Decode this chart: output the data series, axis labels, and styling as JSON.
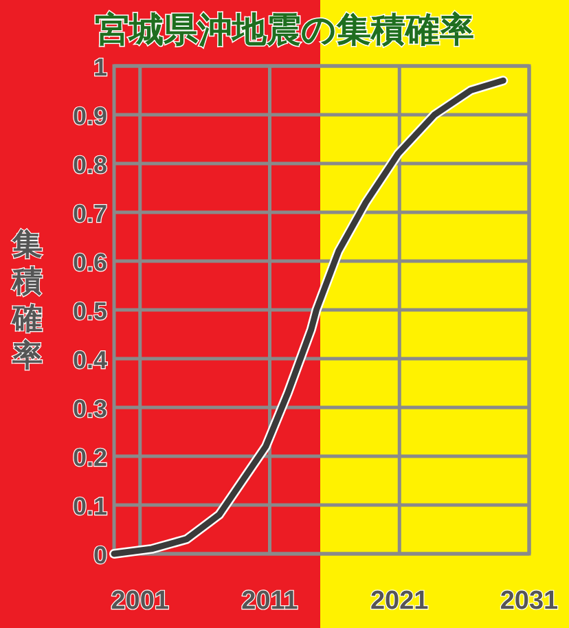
{
  "chart_data": {
    "type": "line",
    "title": "宮城県沖地震の集積確率",
    "ylabel": "集積確率",
    "x": [
      1999,
      2001.9,
      2004.6,
      2007.1,
      2008.9,
      2010.7,
      2012.4,
      2014.2,
      2014.6,
      2016.3,
      2018.4,
      2020.9,
      2023.7,
      2026.5,
      2029.0
    ],
    "series": [
      {
        "color": "#3a3a3a",
        "values": [
          0,
          0.01,
          0.03,
          0.08,
          0.15,
          0.22,
          0.33,
          0.46,
          0.5,
          0.62,
          0.72,
          0.82,
          0.9,
          0.95,
          0.97
        ]
      }
    ],
    "xlim": [
      1999,
      2031
    ],
    "xticks": [
      2001,
      2011,
      2021,
      2031
    ],
    "ylim": [
      0,
      1
    ],
    "yticks": [
      0,
      0.1,
      0.2,
      0.3,
      0.4,
      0.5,
      0.6,
      0.7,
      0.8,
      0.9,
      1
    ],
    "grid": true
  }
}
